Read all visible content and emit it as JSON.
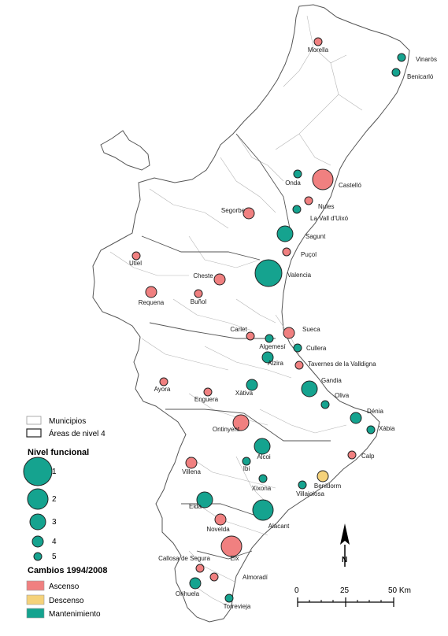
{
  "map": {
    "colors": {
      "ascenso": "#f08080",
      "descenso": "#f5d27a",
      "mantenimiento": "#15a38f",
      "stroke": "#222222",
      "region_fill": "#ffffff",
      "border": "#555555"
    },
    "places": [
      {
        "name": "Morella",
        "change": "ascenso",
        "level": 5
      },
      {
        "name": "Vinaròs",
        "change": "mantenimiento",
        "level": 5
      },
      {
        "name": "Benicarló",
        "change": "mantenimiento",
        "level": 5
      },
      {
        "name": "Castelló",
        "change": "ascenso",
        "level": 2
      },
      {
        "name": "Onda",
        "change": "mantenimiento",
        "level": 5
      },
      {
        "name": "Nules",
        "change": "ascenso",
        "level": 5
      },
      {
        "name": "La Vall d'Uixó",
        "change": "mantenimiento",
        "level": 5
      },
      {
        "name": "Segorbe",
        "change": "ascenso",
        "level": 4
      },
      {
        "name": "Sagunt",
        "change": "mantenimiento",
        "level": 3
      },
      {
        "name": "Puçol",
        "change": "ascenso",
        "level": 5
      },
      {
        "name": "Utiel",
        "change": "ascenso",
        "level": 5
      },
      {
        "name": "Valencia",
        "change": "mantenimiento",
        "level": 1
      },
      {
        "name": "Cheste",
        "change": "ascenso",
        "level": 4
      },
      {
        "name": "Requena",
        "change": "ascenso",
        "level": 4
      },
      {
        "name": "Buñol",
        "change": "ascenso",
        "level": 5
      },
      {
        "name": "Carlet",
        "change": "ascenso",
        "level": 5
      },
      {
        "name": "Algemesí",
        "change": "mantenimiento",
        "level": 5
      },
      {
        "name": "Sueca",
        "change": "ascenso",
        "level": 4
      },
      {
        "name": "Cullera",
        "change": "mantenimiento",
        "level": 5
      },
      {
        "name": "Alzira",
        "change": "mantenimiento",
        "level": 4
      },
      {
        "name": "Tavernes de la Valldigna",
        "change": "ascenso",
        "level": 5
      },
      {
        "name": "Gandia",
        "change": "mantenimiento",
        "level": 3
      },
      {
        "name": "Ayora",
        "change": "ascenso",
        "level": 5
      },
      {
        "name": "Xàtiva",
        "change": "mantenimiento",
        "level": 4
      },
      {
        "name": "Enguera",
        "change": "ascenso",
        "level": 5
      },
      {
        "name": "Oliva",
        "change": "mantenimiento",
        "level": 5
      },
      {
        "name": "Dénia",
        "change": "mantenimiento",
        "level": 4
      },
      {
        "name": "Xàbia",
        "change": "mantenimiento",
        "level": 5
      },
      {
        "name": "Ontinyent",
        "change": "ascenso",
        "level": 3
      },
      {
        "name": "Alcoi",
        "change": "mantenimiento",
        "level": 3
      },
      {
        "name": "Calp",
        "change": "ascenso",
        "level": 5
      },
      {
        "name": "Villena",
        "change": "ascenso",
        "level": 4
      },
      {
        "name": "Ibi",
        "change": "mantenimiento",
        "level": 5
      },
      {
        "name": "Benidorm",
        "change": "descenso",
        "level": 4
      },
      {
        "name": "Xixona",
        "change": "mantenimiento",
        "level": 5
      },
      {
        "name": "Villajoiosa",
        "change": "mantenimiento",
        "level": 5
      },
      {
        "name": "Elda",
        "change": "mantenimiento",
        "level": 3
      },
      {
        "name": "Alacant",
        "change": "mantenimiento",
        "level": 2
      },
      {
        "name": "Novelda",
        "change": "ascenso",
        "level": 4
      },
      {
        "name": "Elx",
        "change": "ascenso",
        "level": 2
      },
      {
        "name": "Callosa de Segura",
        "change": "ascenso",
        "level": 5
      },
      {
        "name": "Almoradí",
        "change": "ascenso",
        "level": 5
      },
      {
        "name": "Orihuela",
        "change": "mantenimiento",
        "level": 4
      },
      {
        "name": "Torrevieja",
        "change": "mantenimiento",
        "level": 5
      }
    ]
  },
  "legend": {
    "municipios": "Municipios",
    "areas": "Áreas de nivel 4",
    "nivel_title": "Nivel funcional",
    "levels": [
      "1",
      "2",
      "3",
      "4",
      "5"
    ],
    "cambios_title": "Cambios 1994/2008",
    "changes": [
      {
        "label": "Ascenso",
        "color": "#f08080"
      },
      {
        "label": "Descenso",
        "color": "#f5d27a"
      },
      {
        "label": "Mantenimiento",
        "color": "#15a38f"
      }
    ]
  },
  "north_arrow": "N",
  "scale": {
    "ticks": [
      "0",
      "25",
      "50 Km"
    ]
  }
}
